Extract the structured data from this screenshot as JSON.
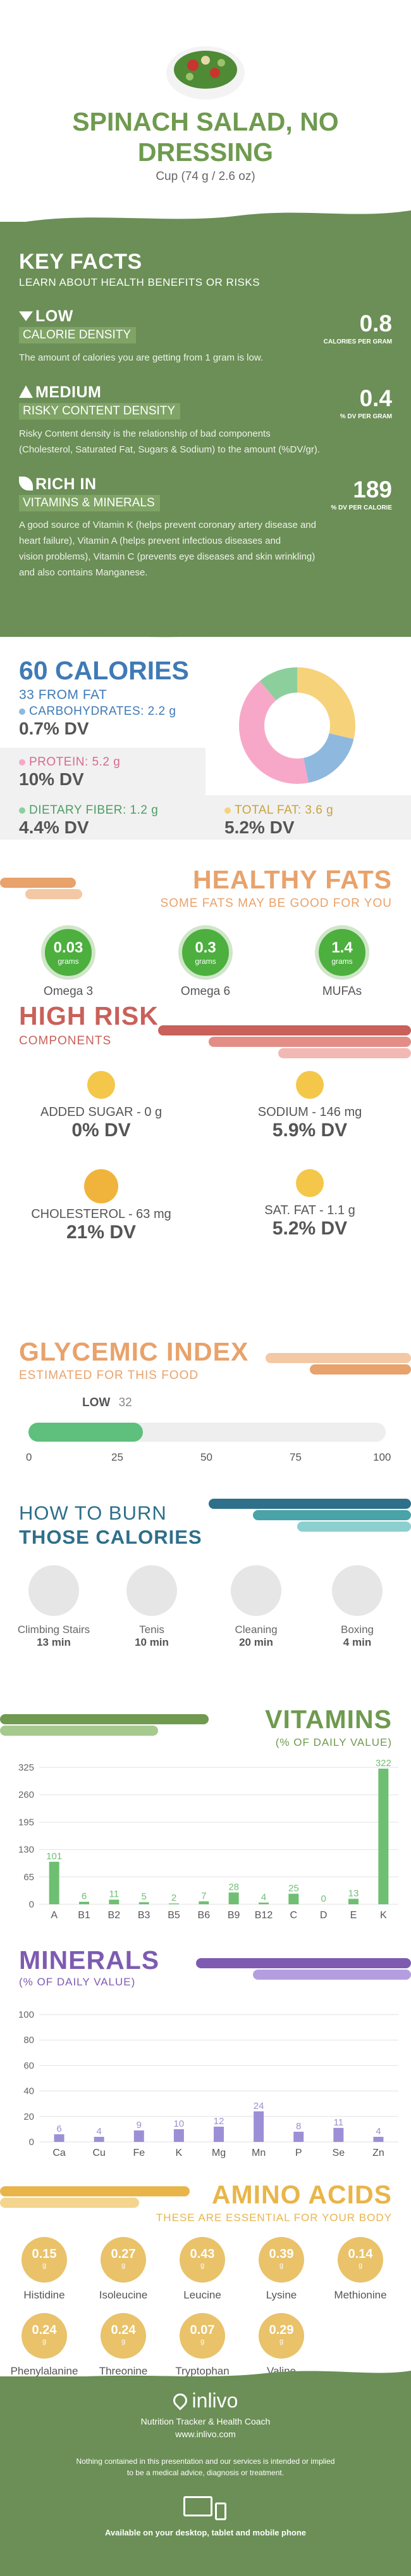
{
  "header": {
    "title": "SPINACH SALAD, NO DRESSING",
    "serving": "Cup (74 g / 2.6 oz)"
  },
  "key_facts": {
    "title": "KEY FACTS",
    "subtitle": "LEARN ABOUT HEALTH BENEFITS OR RISKS",
    "calorie_density": {
      "level": "LOW",
      "label": "CALORIE DENSITY",
      "value": "0.8",
      "unit": "CALORIES PER GRAM",
      "description": "The amount of calories you are getting from 1 gram is low."
    },
    "risky_density": {
      "level": "MEDIUM",
      "label": "RISKY CONTENT DENSITY",
      "value": "0.4",
      "unit": "% DV PER GRAM",
      "description_1": "Risky Content density is the relationship of bad components",
      "description_2": "(Cholesterol, Saturated Fat, Sugars & Sodium) to the amount (%DV/gr)."
    },
    "vitamins_minerals": {
      "level": "RICH IN",
      "label": "VITAMINS & MINERALS",
      "value": "189",
      "unit": "% DV PER CALORIE",
      "description_1": "A good source of Vitamin K (helps prevent coronary artery disease and",
      "description_2": "heart failure), Vitamin A (helps prevent infectious diseases and",
      "description_3": "vision problems), Vitamin C (prevents eye diseases and skin wrinkling)",
      "description_4": "and also contains Manganese."
    }
  },
  "calories": {
    "title": "60 CALORIES",
    "subtitle": "33 FROM FAT",
    "carbs_label": "CARBOHYDRATES: 2.2 g",
    "carbs_dv": "0.7% DV",
    "protein_label": "PROTEIN: 5.2 g",
    "protein_dv": "10% DV",
    "fiber_label": "DIETARY FIBER: 1.2 g",
    "fiber_dv": "4.4% DV",
    "fat_label": "TOTAL FAT: 3.6 g",
    "fat_dv": "5.2% DV",
    "colors": {
      "carbs": "#8fb8df",
      "protein": "#f7a8c8",
      "fiber": "#8ccf9d",
      "fat": "#f6d27a"
    }
  },
  "healthy_fats": {
    "title": "HEALTHY FATS",
    "subtitle": "SOME FATS MAY BE GOOD FOR YOU",
    "items": [
      {
        "value": "0.03",
        "unit": "grams",
        "name": "Omega 3"
      },
      {
        "value": "0.3",
        "unit": "grams",
        "name": "Omega 6"
      },
      {
        "value": "1.4",
        "unit": "grams",
        "name": "MUFAs"
      }
    ]
  },
  "high_risk": {
    "title": "HIGH RISK",
    "subtitle": "COMPONENTS",
    "items": [
      {
        "label": "ADDED SUGAR - 0 g",
        "dv": "0% DV"
      },
      {
        "label": "SODIUM - 146 mg",
        "dv": "5.9% DV"
      },
      {
        "label": "CHOLESTEROL - 63 mg",
        "dv": "21% DV"
      },
      {
        "label": "SAT. FAT - 1.1 g",
        "dv": "5.2% DV"
      }
    ]
  },
  "glycemic": {
    "title": "GLYCEMIC INDEX",
    "subtitle": "ESTIMATED FOR THIS FOOD",
    "level": "LOW",
    "value": 32,
    "ticks": [
      "0",
      "25",
      "50",
      "75",
      "100"
    ]
  },
  "burn": {
    "title_1": "HOW TO BURN",
    "title_2": "THOSE CALORIES",
    "items": [
      {
        "name": "Climbing Stairs",
        "time": "13 min",
        "icon": "stairs-icon"
      },
      {
        "name": "Tenis",
        "time": "10 min",
        "icon": "tennis-icon"
      },
      {
        "name": "Cleaning",
        "time": "20 min",
        "icon": "cleaning-icon"
      },
      {
        "name": "Boxing",
        "time": "4 min",
        "icon": "boxing-icon"
      }
    ]
  },
  "chart_data": [
    {
      "type": "bar",
      "title": "VITAMINS",
      "subtitle": "(% OF DAILY VALUE)",
      "categories": [
        "A",
        "B1",
        "B2",
        "B3",
        "B5",
        "B6",
        "B9",
        "B12",
        "C",
        "D",
        "E",
        "K"
      ],
      "values": [
        101,
        6,
        11,
        5,
        2,
        7,
        28,
        4,
        25,
        0,
        13,
        322
      ],
      "yticks": [
        "0",
        "65",
        "130",
        "195",
        "260",
        "325"
      ],
      "ylim": [
        0,
        325
      ],
      "color": "#6fbf73"
    },
    {
      "type": "bar",
      "title": "MINERALS",
      "subtitle": "(% OF DAILY VALUE)",
      "categories": [
        "Ca",
        "Cu",
        "Fe",
        "K",
        "Mg",
        "Mn",
        "P",
        "Se",
        "Zn"
      ],
      "values": [
        6,
        4,
        9,
        10,
        12,
        24,
        8,
        11,
        4
      ],
      "yticks": [
        "0",
        "20",
        "40",
        "60",
        "80",
        "100"
      ],
      "ylim": [
        0,
        100
      ],
      "color": "#9c8fd6"
    }
  ],
  "amino": {
    "title": "AMINO ACIDS",
    "subtitle": "THESE ARE ESSENTIAL FOR YOUR BODY",
    "unit": "g",
    "items": [
      {
        "value": "0.15",
        "name": "Histidine"
      },
      {
        "value": "0.27",
        "name": "Isoleucine"
      },
      {
        "value": "0.43",
        "name": "Leucine"
      },
      {
        "value": "0.39",
        "name": "Lysine"
      },
      {
        "value": "0.14",
        "name": "Methionine"
      },
      {
        "value": "0.24",
        "name": "Phenylalanine"
      },
      {
        "value": "0.24",
        "name": "Threonine"
      },
      {
        "value": "0.07",
        "name": "Tryptophan"
      },
      {
        "value": "0.29",
        "name": "Valine"
      }
    ]
  },
  "footer": {
    "brand": "inlivo",
    "tagline": "Nutrition Tracker & Health Coach",
    "url": "www.inlivo.com",
    "disclaimer_1": "Nothing contained in this presentation and our services is intended or implied",
    "disclaimer_2": "to be a medical advice, diagnosis or treatment.",
    "available": "Available on your desktop, tablet and mobile phone"
  }
}
